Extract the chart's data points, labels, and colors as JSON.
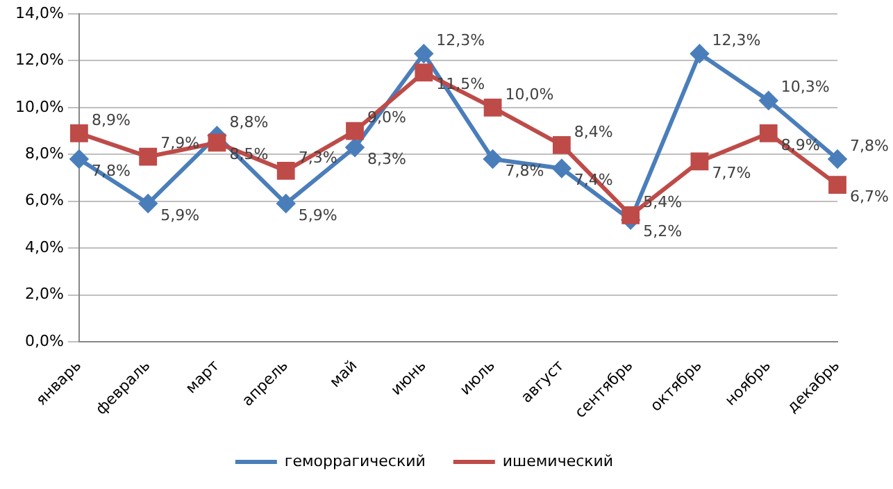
{
  "chart_data": {
    "type": "line",
    "categories": [
      "январь",
      "февраль",
      "март",
      "апрель",
      "май",
      "июнь",
      "июль",
      "август",
      "сентябрь",
      "октябрь",
      "ноябрь",
      "декабрь"
    ],
    "series": [
      {
        "name": "геморрагический",
        "color": "#4a7ebb",
        "marker": "diamond",
        "values": [
          7.8,
          5.9,
          8.8,
          5.9,
          8.3,
          12.3,
          7.8,
          7.4,
          5.2,
          12.3,
          10.3,
          7.8
        ],
        "value_labels": [
          "7,8%",
          "5,9%",
          "8,8%",
          "5,9%",
          "8,3%",
          "12,3%",
          "7,8%",
          "7,4%",
          "5,2%",
          "12,3%",
          "10,3%",
          "7,8%"
        ]
      },
      {
        "name": "ишемический",
        "color": "#be4b48",
        "marker": "square",
        "values": [
          8.9,
          7.9,
          8.5,
          7.3,
          9.0,
          11.5,
          10.0,
          8.4,
          5.4,
          7.7,
          8.9,
          6.7
        ],
        "value_labels": [
          "8,9%",
          "7,9%",
          "8,5%",
          "7,3%",
          "9,0%",
          "11,5%",
          "10,0%",
          "8,4%",
          "5,4%",
          "7,7%",
          "8,9%",
          "6,7%"
        ]
      }
    ],
    "ylim": [
      0,
      14
    ],
    "yticks": [
      {
        "value": 0,
        "label": "0,0%"
      },
      {
        "value": 2,
        "label": "2,0%"
      },
      {
        "value": 4,
        "label": "4,0%"
      },
      {
        "value": 6,
        "label": "6,0%"
      },
      {
        "value": 8,
        "label": "8,0%"
      },
      {
        "value": 10,
        "label": "10,0%"
      },
      {
        "value": 12,
        "label": "12,0%"
      },
      {
        "value": 14,
        "label": "14,0%"
      }
    ],
    "grid": "y",
    "legend": "bottom"
  }
}
